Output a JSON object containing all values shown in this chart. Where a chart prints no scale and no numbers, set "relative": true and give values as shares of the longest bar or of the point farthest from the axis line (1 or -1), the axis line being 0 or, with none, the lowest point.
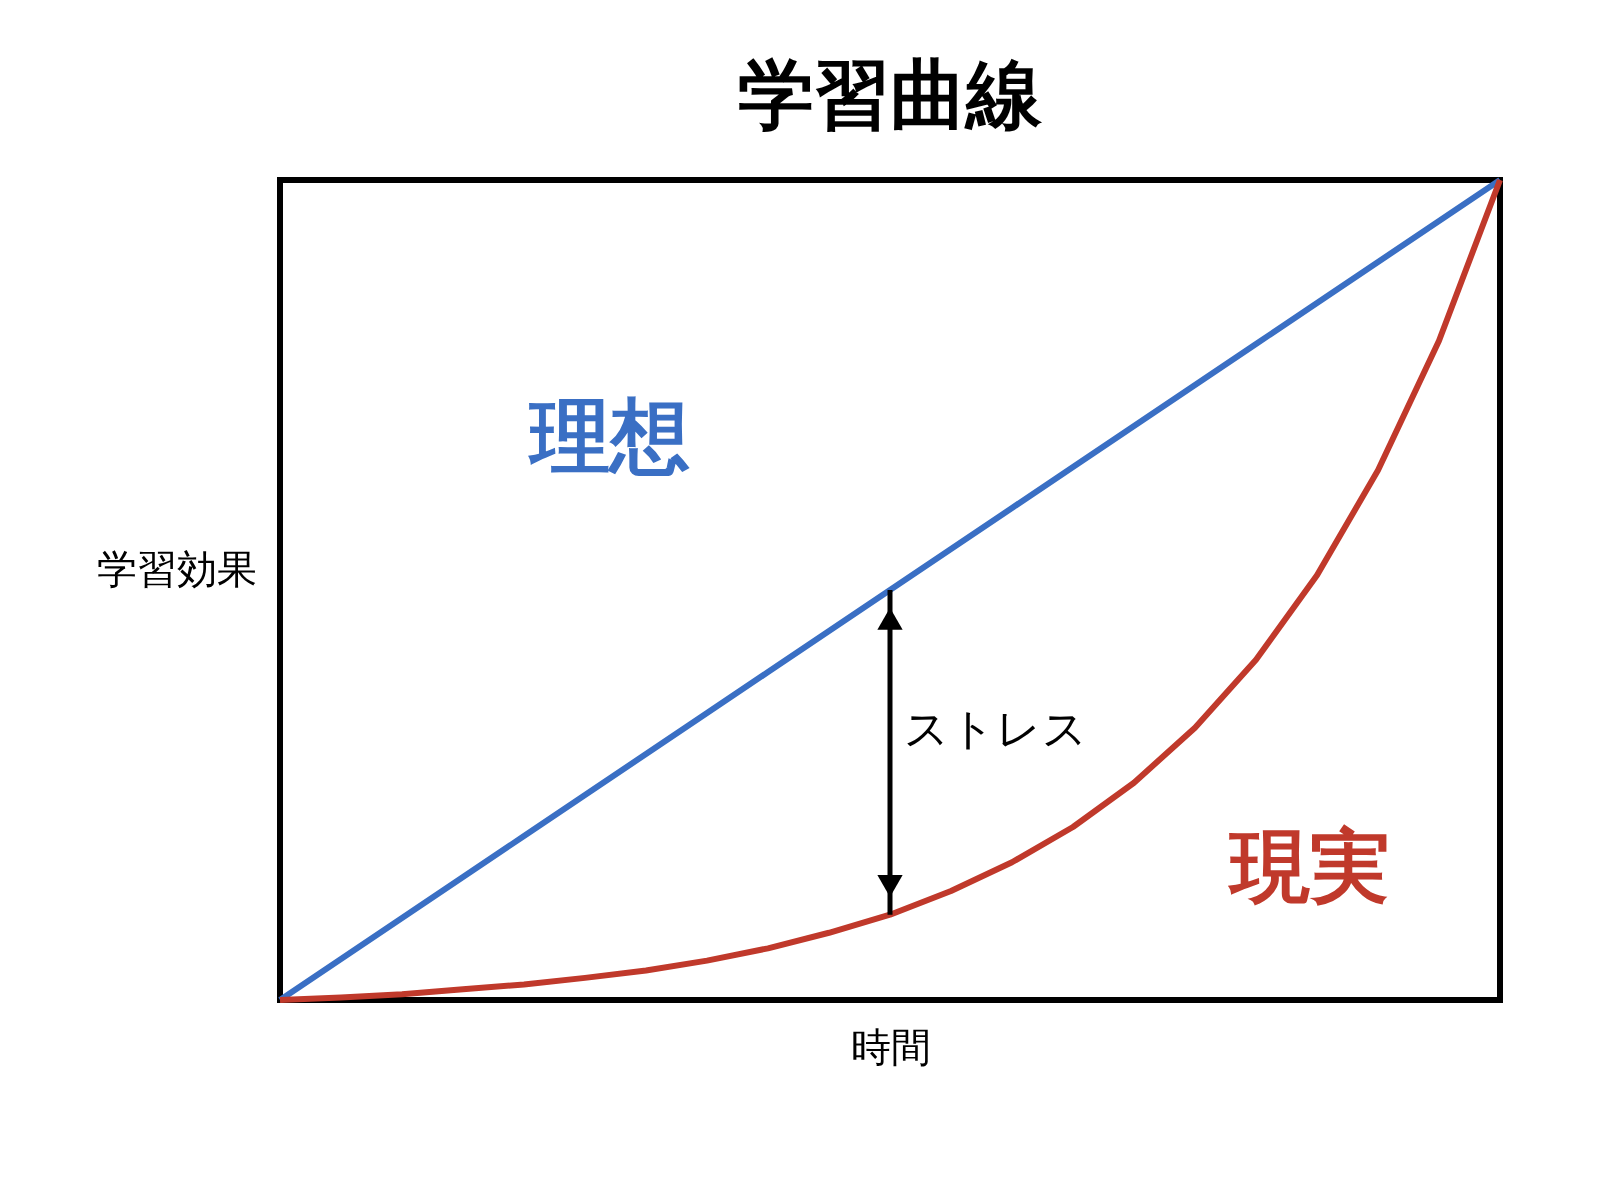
{
  "chart_data": {
    "type": "line",
    "title": "学習曲線",
    "xlabel": "時間",
    "ylabel": "学習効果",
    "relative": true,
    "tick_labels": false,
    "grid": false,
    "marker": "none",
    "line_style": "solid",
    "categories": [
      null,
      null,
      null,
      null,
      null,
      null,
      null,
      null,
      null,
      null,
      null,
      null,
      null,
      null,
      null,
      null,
      null,
      null,
      null,
      null,
      null
    ],
    "series": [
      {
        "name": "理想",
        "color": "#3a6fc4",
        "values": [
          0,
          0.05,
          0.1,
          0.15,
          0.2,
          0.25,
          0.3,
          0.35,
          0.4,
          0.45,
          0.5,
          0.55,
          0.6,
          0.65,
          0.7,
          0.75,
          0.8,
          0.85,
          0.9,
          0.95,
          1
        ]
      },
      {
        "name": "現実",
        "color": "#c0392b",
        "values": [
          0,
          0.003,
          0.007,
          0.013,
          0.019,
          0.027,
          0.036,
          0.048,
          0.063,
          0.082,
          0.104,
          0.133,
          0.168,
          0.211,
          0.265,
          0.332,
          0.415,
          0.518,
          0.646,
          0.804,
          1
        ]
      }
    ],
    "annotations": [
      "ストレス"
    ]
  }
}
